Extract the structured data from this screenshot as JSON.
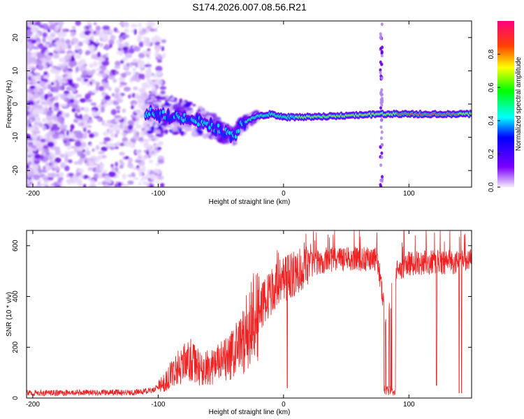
{
  "title": "S174.2026.007.08.56.R21",
  "chart_data": [
    {
      "type": "heatmap",
      "xlabel": "Height of straight line (km)",
      "ylabel": "Frequency (Hz)",
      "xlim": [
        -205,
        150
      ],
      "ylim": [
        -25,
        25
      ],
      "xticks": [
        -200,
        -100,
        0,
        100
      ],
      "yticks": [
        -20,
        -10,
        0,
        10,
        20
      ],
      "xtick_labels": [
        "-200",
        "-100",
        "0",
        "100"
      ],
      "ytick_labels": [
        "-20",
        "-10",
        "0",
        "10",
        "20"
      ],
      "ridge": [
        {
          "x": -110,
          "y": -2.5
        },
        {
          "x": -95,
          "y": -3.5
        },
        {
          "x": -80,
          "y": -4
        },
        {
          "x": -70,
          "y": -5
        },
        {
          "x": -60,
          "y": -6
        },
        {
          "x": -50,
          "y": -8
        },
        {
          "x": -40,
          "y": -10
        },
        {
          "x": -35,
          "y": -7
        },
        {
          "x": -28,
          "y": -5
        },
        {
          "x": -20,
          "y": -3.5
        },
        {
          "x": -10,
          "y": -3
        },
        {
          "x": 0,
          "y": -4
        },
        {
          "x": 20,
          "y": -3.8
        },
        {
          "x": 50,
          "y": -3.5
        },
        {
          "x": 80,
          "y": -3
        },
        {
          "x": 110,
          "y": -3
        },
        {
          "x": 150,
          "y": -3
        }
      ],
      "vertical_streak_x": 78,
      "colorbar": {
        "label": "Normalized spectral amplitude",
        "range": [
          0,
          1
        ],
        "ticks": [
          0.0,
          0.2,
          0.4,
          0.6,
          0.8
        ],
        "tick_labels": [
          "0.0",
          "0.2",
          "0.4",
          "0.6",
          "0.8"
        ]
      }
    },
    {
      "type": "line",
      "xlabel": "Height of straight line (km)",
      "ylabel": "SNR (10 * v/v)",
      "xlim": [
        -205,
        150
      ],
      "ylim": [
        0,
        660
      ],
      "xticks": [
        -200,
        -100,
        0,
        100
      ],
      "yticks": [
        0,
        200,
        400,
        600
      ],
      "xtick_labels": [
        "-200",
        "-100",
        "0",
        "100"
      ],
      "ytick_labels": [
        "0",
        "200",
        "400",
        "600"
      ],
      "series": [
        {
          "name": "SNR",
          "color": "#ee2222",
          "x": [
            -205,
            -180,
            -150,
            -120,
            -105,
            -95,
            -85,
            -75,
            -65,
            -55,
            -45,
            -35,
            -25,
            -15,
            -5,
            5,
            15,
            25,
            35,
            45,
            55,
            65,
            75,
            82,
            90,
            100,
            120,
            150
          ],
          "y": [
            20,
            20,
            22,
            22,
            30,
            60,
            120,
            150,
            110,
            130,
            150,
            200,
            300,
            380,
            450,
            480,
            510,
            530,
            545,
            545,
            545,
            550,
            545,
            300,
            500,
            530,
            535,
            540
          ]
        }
      ]
    }
  ]
}
